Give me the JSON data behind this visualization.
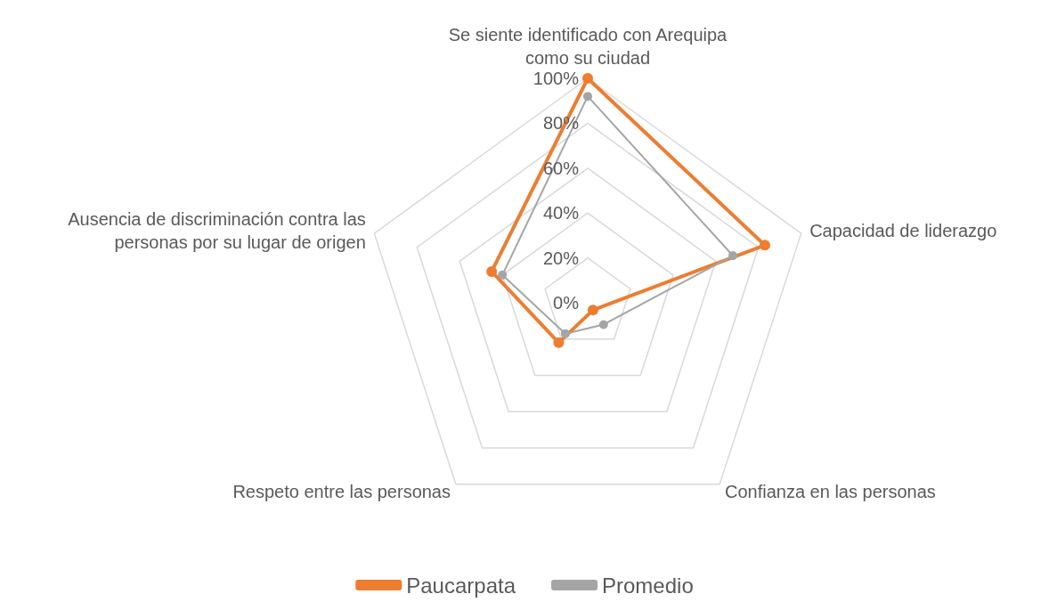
{
  "chart_data": {
    "type": "radar",
    "categories": [
      "Se siente identificado con Arequipa como su ciudad",
      "Capacidad de liderazgo",
      "Confianza en las personas",
      "Respeto entre las personas",
      "Ausencia de discriminación contra las personas por su lugar de origen"
    ],
    "series": [
      {
        "name": "Paucarpata",
        "color": "#ed7d31",
        "values": [
          100,
          83,
          4,
          22,
          45
        ]
      },
      {
        "name": "Promedio",
        "color": "#a5a5a5",
        "values": [
          92,
          68,
          12,
          17,
          40
        ]
      }
    ],
    "ylim": [
      0,
      100
    ],
    "yticks": [
      {
        "value": 0,
        "label": "0%"
      },
      {
        "value": 20,
        "label": "20%"
      },
      {
        "value": 40,
        "label": "40%"
      },
      {
        "value": 60,
        "label": "60%"
      },
      {
        "value": 80,
        "label": "80%"
      },
      {
        "value": 100,
        "label": "100%"
      }
    ],
    "legend": "bottom",
    "marker": "circle",
    "grid": true
  }
}
